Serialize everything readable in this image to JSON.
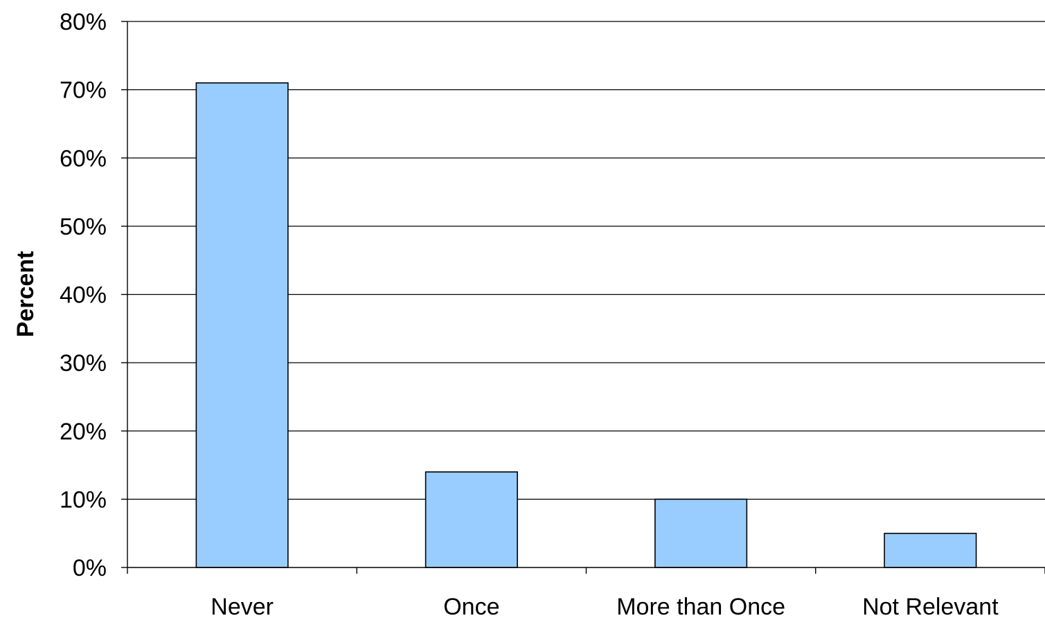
{
  "chart_data": {
    "type": "bar",
    "categories": [
      "Never",
      "Once",
      "More than Once",
      "Not Relevant"
    ],
    "values": [
      71,
      14,
      10,
      5
    ],
    "ylabel": "Percent",
    "xlabel": "",
    "ylim": [
      0,
      80
    ],
    "yticks": [
      "0%",
      "10%",
      "20%",
      "30%",
      "40%",
      "50%",
      "60%",
      "70%",
      "80%"
    ],
    "grid": true,
    "legend": "none",
    "bar_color": "#99CCFF",
    "border_color": "#000000"
  }
}
